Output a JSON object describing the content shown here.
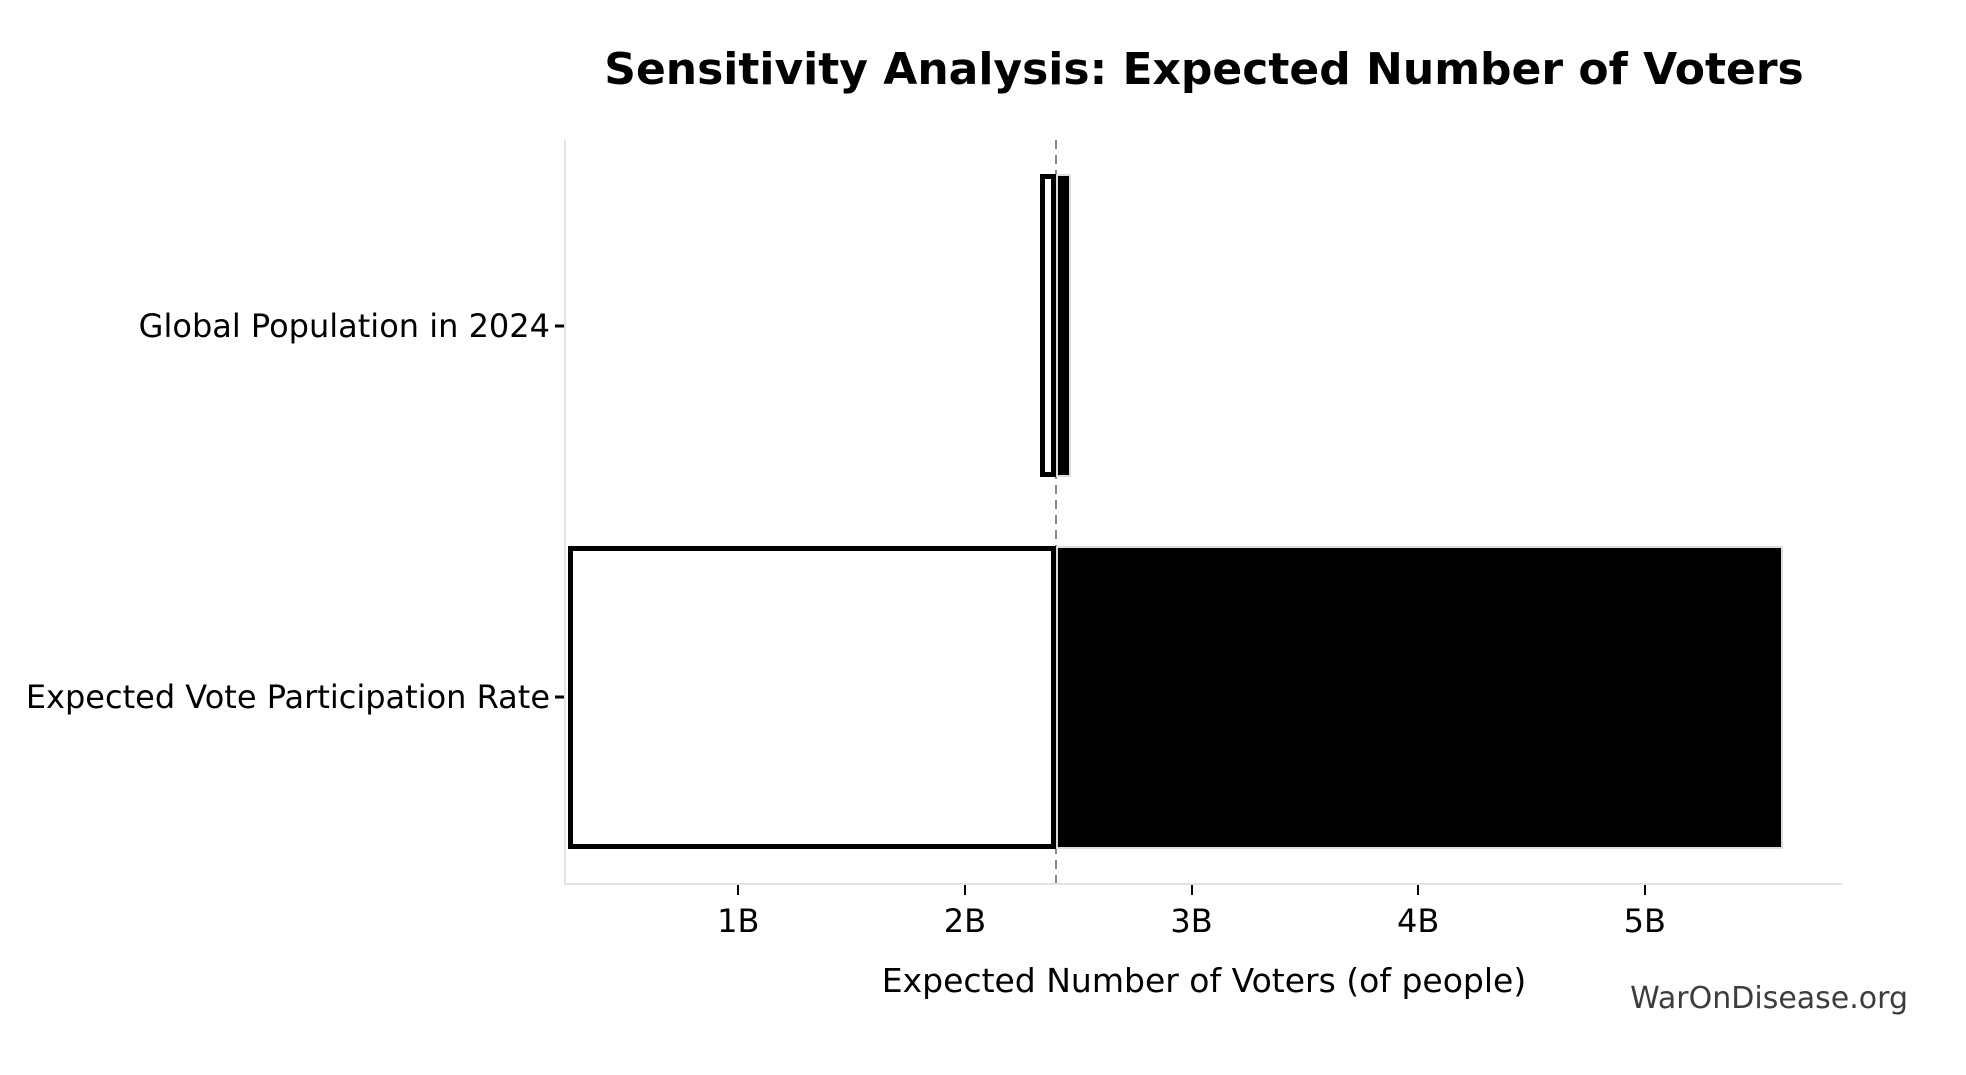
{
  "chart_data": {
    "type": "bar",
    "variant": "tornado-sensitivity",
    "orientation": "horizontal",
    "title": "Sensitivity Analysis: Expected Number of Voters",
    "xlabel": "Expected Number of Voters (of people)",
    "watermark": "WarOnDisease.org",
    "categories": [
      "Global Population in 2024",
      "Expected Vote Participation Rate"
    ],
    "base_value": 2.4,
    "series": [
      {
        "name": "Global Population in 2024",
        "low": 2.33,
        "high": 2.47
      },
      {
        "name": "Expected Vote Participation Rate",
        "low": 0.25,
        "high": 5.61
      }
    ],
    "x_ticks": [
      {
        "value": 1,
        "label": "1B"
      },
      {
        "value": 2,
        "label": "2B"
      },
      {
        "value": 3,
        "label": "3B"
      },
      {
        "value": 4,
        "label": "4B"
      },
      {
        "value": 5,
        "label": "5B"
      }
    ],
    "xlim": [
      0.24,
      5.87
    ],
    "grid": false,
    "legend": "none",
    "colors": {
      "low_segment_fill": "#ffffff",
      "low_segment_edge": "#000000",
      "high_segment_fill": "#000000",
      "high_segment_edge": "#dddddd",
      "baseline_dash": "#888888",
      "spine": "#e2e2e2",
      "tick": "#000000",
      "text": "#000000",
      "watermark_text": "#3d3d3d"
    }
  }
}
